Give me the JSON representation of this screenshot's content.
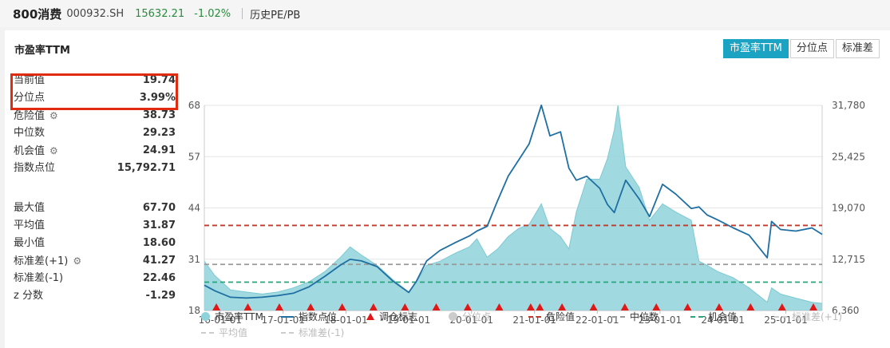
{
  "header": {
    "name": "800消费",
    "code": "000932.SH",
    "price": "15632.21",
    "change": "-1.02%",
    "history": "历史PE/PB"
  },
  "card": {
    "title": "市盈率TTM",
    "tabs": [
      {
        "label": "市盈率TTM",
        "active": true
      },
      {
        "label": "分位点",
        "active": false
      },
      {
        "label": "标准差",
        "active": false
      }
    ]
  },
  "stats": {
    "group1": [
      {
        "label": "当前值",
        "value": "19.74",
        "gear": false
      },
      {
        "label": "分位点",
        "value": "3.99%",
        "gear": false
      },
      {
        "label": "危险值",
        "value": "38.73",
        "gear": true
      },
      {
        "label": "中位数",
        "value": "29.23",
        "gear": false
      },
      {
        "label": "机会值",
        "value": "24.91",
        "gear": true
      },
      {
        "label": "指数点位",
        "value": "15,792.71",
        "gear": false
      }
    ],
    "group2": [
      {
        "label": "最大值",
        "value": "67.70",
        "gear": false
      },
      {
        "label": "平均值",
        "value": "31.87",
        "gear": false
      },
      {
        "label": "最小值",
        "value": "18.60",
        "gear": false
      },
      {
        "label": "标准差(+1)",
        "value": "41.27",
        "gear": true
      },
      {
        "label": "标准差(-1)",
        "value": "22.46",
        "gear": false
      },
      {
        "label": "z 分数",
        "value": "-1.29",
        "gear": false
      }
    ]
  },
  "colors": {
    "pe_fill": "#8fd3da",
    "pe_line": "#7ccad2",
    "index_line": "#1f6fa3",
    "danger": "#c0392b",
    "median": "#999999",
    "opportunity": "#27a57a",
    "marker": "#e01818",
    "accent": "#1aa3c3"
  },
  "chart_data": {
    "type": "area",
    "x_ticks": [
      "16-01-01",
      "17-01-01",
      "18-01-01",
      "19-01-01",
      "20-01-01",
      "21-01-01",
      "22-01-01",
      "23-01-01",
      "24-01-01",
      "25-01-01"
    ],
    "x_start": "2015-10-01",
    "x_end": "2025-07-31",
    "y_left_ticks": [
      "68",
      "57",
      "44",
      "31",
      "18"
    ],
    "y_left_range": [
      18,
      68
    ],
    "y_right_ticks": [
      "31,780",
      "25,425",
      "19,070",
      "12,715",
      "6,360"
    ],
    "y_right_range": [
      6360,
      31780
    ],
    "reference_lines": {
      "danger": 38.73,
      "median": 29.23,
      "opportunity": 24.91
    },
    "series": [
      {
        "name": "市盈率TTM",
        "axis": "left",
        "points": [
          [
            "2015-10-01",
            30
          ],
          [
            "2015-12-01",
            26.5
          ],
          [
            "2016-03-01",
            23
          ],
          [
            "2016-06-01",
            22.5
          ],
          [
            "2016-09-01",
            22
          ],
          [
            "2016-12-01",
            22.5
          ],
          [
            "2017-03-01",
            23.5
          ],
          [
            "2017-06-01",
            25
          ],
          [
            "2017-09-01",
            27.5
          ],
          [
            "2017-12-01",
            31
          ],
          [
            "2018-01-25",
            33.5
          ],
          [
            "2018-04-01",
            31.5
          ],
          [
            "2018-07-01",
            29
          ],
          [
            "2018-10-01",
            25.5
          ],
          [
            "2019-01-01",
            22.5
          ],
          [
            "2019-02-15",
            25
          ],
          [
            "2019-04-15",
            29
          ],
          [
            "2019-07-01",
            30
          ],
          [
            "2019-10-01",
            32
          ],
          [
            "2019-12-20",
            33.5
          ],
          [
            "2020-02-01",
            35.5
          ],
          [
            "2020-04-01",
            31
          ],
          [
            "2020-06-01",
            33
          ],
          [
            "2020-08-01",
            36
          ],
          [
            "2020-10-01",
            38
          ],
          [
            "2020-12-01",
            39
          ],
          [
            "2021-02-10",
            44
          ],
          [
            "2021-04-01",
            38
          ],
          [
            "2021-06-01",
            36
          ],
          [
            "2021-07-20",
            33
          ],
          [
            "2021-09-01",
            42
          ],
          [
            "2021-11-01",
            50
          ],
          [
            "2022-01-15",
            50
          ],
          [
            "2022-03-01",
            55
          ],
          [
            "2022-04-10",
            62
          ],
          [
            "2022-05-01",
            68
          ],
          [
            "2022-06-15",
            53
          ],
          [
            "2022-09-01",
            48
          ],
          [
            "2022-11-01",
            40
          ],
          [
            "2023-01-15",
            44
          ],
          [
            "2023-04-01",
            42
          ],
          [
            "2023-07-01",
            40
          ],
          [
            "2023-08-15",
            30
          ],
          [
            "2023-10-01",
            29
          ],
          [
            "2023-12-01",
            27.5
          ],
          [
            "2024-03-01",
            26
          ],
          [
            "2024-06-01",
            23.5
          ],
          [
            "2024-09-15",
            20
          ],
          [
            "2024-10-10",
            23.5
          ],
          [
            "2024-12-01",
            22
          ],
          [
            "2025-03-01",
            21
          ],
          [
            "2025-06-01",
            20
          ],
          [
            "2025-07-31",
            19.74
          ]
        ]
      },
      {
        "name": "指数点位",
        "axis": "right",
        "points": [
          [
            "2015-10-01",
            9500
          ],
          [
            "2015-12-01",
            8800
          ],
          [
            "2016-03-01",
            8000
          ],
          [
            "2016-06-01",
            7900
          ],
          [
            "2016-09-01",
            8000
          ],
          [
            "2016-12-01",
            8200
          ],
          [
            "2017-03-01",
            8500
          ],
          [
            "2017-06-01",
            9300
          ],
          [
            "2017-09-01",
            10600
          ],
          [
            "2017-12-01",
            12000
          ],
          [
            "2018-01-25",
            12700
          ],
          [
            "2018-04-01",
            12500
          ],
          [
            "2018-07-01",
            11800
          ],
          [
            "2018-10-01",
            10000
          ],
          [
            "2019-01-01",
            8600
          ],
          [
            "2019-02-15",
            10000
          ],
          [
            "2019-04-15",
            12500
          ],
          [
            "2019-07-01",
            13800
          ],
          [
            "2019-10-01",
            14800
          ],
          [
            "2019-12-20",
            15600
          ],
          [
            "2020-02-01",
            16200
          ],
          [
            "2020-04-01",
            16800
          ],
          [
            "2020-06-01",
            20000
          ],
          [
            "2020-08-01",
            23000
          ],
          [
            "2020-10-01",
            25000
          ],
          [
            "2020-12-01",
            27000
          ],
          [
            "2021-02-10",
            31800
          ],
          [
            "2021-04-01",
            28000
          ],
          [
            "2021-06-01",
            28500
          ],
          [
            "2021-07-20",
            24000
          ],
          [
            "2021-09-01",
            22500
          ],
          [
            "2021-11-01",
            23000
          ],
          [
            "2022-01-15",
            21500
          ],
          [
            "2022-03-01",
            19500
          ],
          [
            "2022-04-10",
            18500
          ],
          [
            "2022-05-01",
            19800
          ],
          [
            "2022-06-15",
            22500
          ],
          [
            "2022-09-01",
            20200
          ],
          [
            "2022-11-01",
            18000
          ],
          [
            "2023-01-15",
            22000
          ],
          [
            "2023-04-01",
            20800
          ],
          [
            "2023-07-01",
            19000
          ],
          [
            "2023-08-15",
            19200
          ],
          [
            "2023-10-01",
            18200
          ],
          [
            "2023-12-01",
            17600
          ],
          [
            "2024-03-01",
            16600
          ],
          [
            "2024-06-01",
            15700
          ],
          [
            "2024-09-15",
            12900
          ],
          [
            "2024-10-10",
            17400
          ],
          [
            "2024-12-01",
            16400
          ],
          [
            "2025-03-01",
            16200
          ],
          [
            "2025-06-01",
            16600
          ],
          [
            "2025-07-31",
            15792.71
          ]
        ]
      }
    ],
    "rebalance_markers": [
      "2015-12-10",
      "2016-06-10",
      "2016-12-10",
      "2017-06-10",
      "2017-12-10",
      "2018-06-10",
      "2018-12-10",
      "2019-06-10",
      "2019-12-10",
      "2020-06-10",
      "2020-12-10",
      "2021-02-01",
      "2021-06-10",
      "2021-12-10",
      "2022-06-10",
      "2022-12-10",
      "2023-06-10",
      "2023-12-10",
      "2024-06-10",
      "2024-12-10",
      "2025-06-10"
    ],
    "legend": [
      {
        "label": "市盈率TTM",
        "kind": "dot",
        "color": "#8fd3da",
        "dim": false
      },
      {
        "label": "指数点位",
        "kind": "line",
        "color": "#1f6fa3",
        "dim": false
      },
      {
        "label": "调仓标志",
        "kind": "triangle",
        "color": "#e01818",
        "dim": false
      },
      {
        "label": "分位点",
        "kind": "dot",
        "color": "#cccccc",
        "dim": true
      },
      {
        "label": "危险值",
        "kind": "dash",
        "color": "#c0392b",
        "dim": false
      },
      {
        "label": "中位数",
        "kind": "dash",
        "color": "#999999",
        "dim": false
      },
      {
        "label": "机会值",
        "kind": "dash",
        "color": "#27a57a",
        "dim": false
      },
      {
        "label": "标准差(+1)",
        "kind": "dash",
        "color": "#cccccc",
        "dim": true
      },
      {
        "label": "平均值",
        "kind": "dash",
        "color": "#cccccc",
        "dim": true
      },
      {
        "label": "标准差(-1)",
        "kind": "dash",
        "color": "#cccccc",
        "dim": true
      }
    ]
  }
}
